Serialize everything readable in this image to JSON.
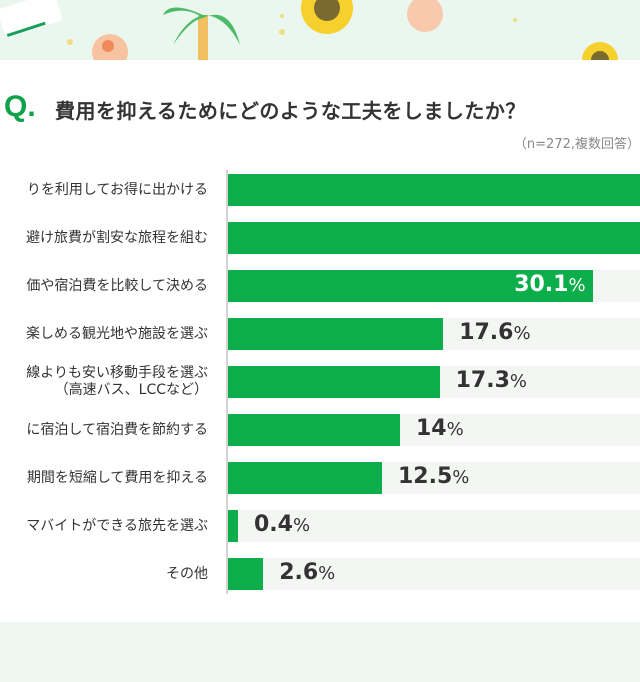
{
  "header": {
    "q_mark": "Q.",
    "title": "費用を抑えるためにどのような工夫をしましたか？",
    "note": "（n=272,複数回答）"
  },
  "colors": {
    "bar": "#0cae4b",
    "track": "#f4f6f4",
    "accent": "#0ea34a",
    "background": "#eef8f1"
  },
  "chart_data": {
    "type": "bar",
    "orientation": "horizontal",
    "title": "費用を抑えるためにどのような工夫をしましたか？",
    "unit": "%",
    "categories": [
      [
        "りを利用してお得に出かける"
      ],
      [
        "避け旅費が割安な旅程を組む"
      ],
      [
        "価や宿泊費を比較して決める"
      ],
      [
        "楽しめる観光地や施設を選ぶ"
      ],
      [
        "線よりも安い移動手段を選ぶ",
        "（高速バス、LCCなど）"
      ],
      [
        "に宿泊して宿泊費を節約する"
      ],
      [
        "期間を短縮して費用を抑える"
      ],
      [
        "マバイトができる旅先を選ぶ"
      ],
      [
        "その他"
      ]
    ],
    "values": [
      40,
      37,
      30.1,
      17.6,
      17.3,
      14,
      12.5,
      0.4,
      2.6
    ],
    "value_labels": [
      "",
      "",
      "30.1",
      "17.6",
      "17.3",
      "14",
      "12.5",
      "0.4",
      "2.6"
    ],
    "percent_sign": "%"
  }
}
